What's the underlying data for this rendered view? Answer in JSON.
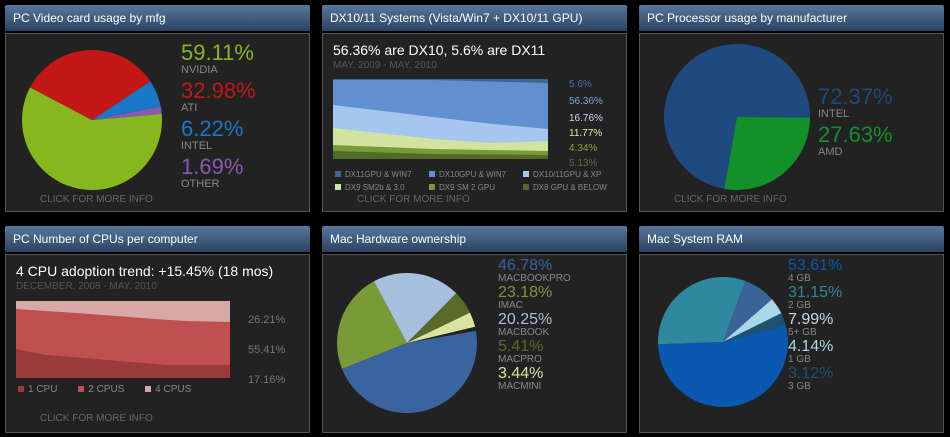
{
  "panels": {
    "gpu": {
      "title": "PC Video card usage by mfg",
      "more": "CLICK FOR MORE INFO",
      "items": [
        {
          "value": "59.11%",
          "label": "NVIDIA",
          "color": "#86b81e",
          "v": 59.11
        },
        {
          "value": "32.98%",
          "label": "ATI",
          "color": "#c41818",
          "v": 32.98
        },
        {
          "value": "6.22%",
          "label": "INTEL",
          "color": "#1a78c8",
          "v": 6.22
        },
        {
          "value": "1.69%",
          "label": "OTHER",
          "color": "#8a5ab0",
          "v": 1.69
        }
      ]
    },
    "dx": {
      "title": "DX10/11 Systems (Vista/Win7 + DX10/11 GPU)",
      "headline": "56.36% are DX10, 5.6% are DX11",
      "range": "MAY, 2009 - MAY, 2010",
      "more": "CLICK FOR MORE INFO",
      "values": [
        {
          "value": "5.6%",
          "color": "#4a70a8"
        },
        {
          "value": "56.36%",
          "color": "#7aa0dc"
        },
        {
          "value": "16.76%",
          "color": "#c8dcf8"
        },
        {
          "value": "11.77%",
          "color": "#e0eca8"
        },
        {
          "value": "4.34%",
          "color": "#8aa040"
        },
        {
          "value": "5.13%",
          "color": "#5a7030"
        }
      ],
      "legend": [
        {
          "label": "DX11GPU & WIN7",
          "color": "#3e6498"
        },
        {
          "label": "DX10GPU & WIN7",
          "color": "#628fd0"
        },
        {
          "label": "DX10/11GPU & XP",
          "color": "#a6c6f0"
        },
        {
          "label": "DX9 SM2b & 3.0",
          "color": "#d0e4a0"
        },
        {
          "label": "DX9 SM 2 GPU",
          "color": "#7a9a3a"
        },
        {
          "label": "DX8 GPU & BELOW",
          "color": "#506a2a"
        }
      ]
    },
    "cpu": {
      "title": "PC Processor usage by manufacturer",
      "more": "CLICK FOR MORE INFO",
      "items": [
        {
          "value": "72.37%",
          "label": "INTEL",
          "color": "#1e4a80",
          "v": 72.37
        },
        {
          "value": "27.63%",
          "label": "AMD",
          "color": "#14902a",
          "v": 27.63
        }
      ]
    },
    "ncpu": {
      "title": "PC Number of CPUs per computer",
      "headline": "4 CPU adoption trend: +15.45% (18 mos)",
      "range": "DECEMBER, 2008 - MAY, 2010",
      "more": "CLICK FOR MORE INFO",
      "values": [
        "26.21%",
        "55.41%",
        "17.16%"
      ],
      "legend": [
        {
          "label": "1 CPU",
          "color": "#9a3a3a"
        },
        {
          "label": "2 CPUS",
          "color": "#c05050"
        },
        {
          "label": "4 CPUS",
          "color": "#d8a8a8"
        }
      ]
    },
    "mac": {
      "title": "Mac Hardware ownership",
      "items": [
        {
          "value": "46.78%",
          "label": "MACBOOKPRO",
          "color": "#3a64a0",
          "v": 46.78
        },
        {
          "value": "23.18%",
          "label": "IMAC",
          "color": "#7a9a38",
          "v": 23.18
        },
        {
          "value": "20.25%",
          "label": "MACBOOK",
          "color": "#a8c0e0",
          "v": 20.25
        },
        {
          "value": "5.41%",
          "label": "MACPRO",
          "color": "#5a6a28",
          "v": 5.41
        },
        {
          "value": "3.44%",
          "label": "MACMINI",
          "color": "#d8e4a0",
          "v": 3.44
        }
      ]
    },
    "ram": {
      "title": "Mac System RAM",
      "items": [
        {
          "value": "53.61%",
          "label": "4 GB",
          "color": "#0a58b0",
          "v": 53.61
        },
        {
          "value": "31.15%",
          "label": "2 GB",
          "color": "#2e88a0",
          "v": 31.15
        },
        {
          "value": "7.99%",
          "label": "5+ GB",
          "color": "#3a6498",
          "v": 7.99
        },
        {
          "value": "4.14%",
          "label": "1 GB",
          "color": "#a8d8e8",
          "v": 4.14
        },
        {
          "value": "3.12%",
          "label": "3 GB",
          "color": "#1e5070",
          "v": 3.12
        }
      ]
    }
  }
}
